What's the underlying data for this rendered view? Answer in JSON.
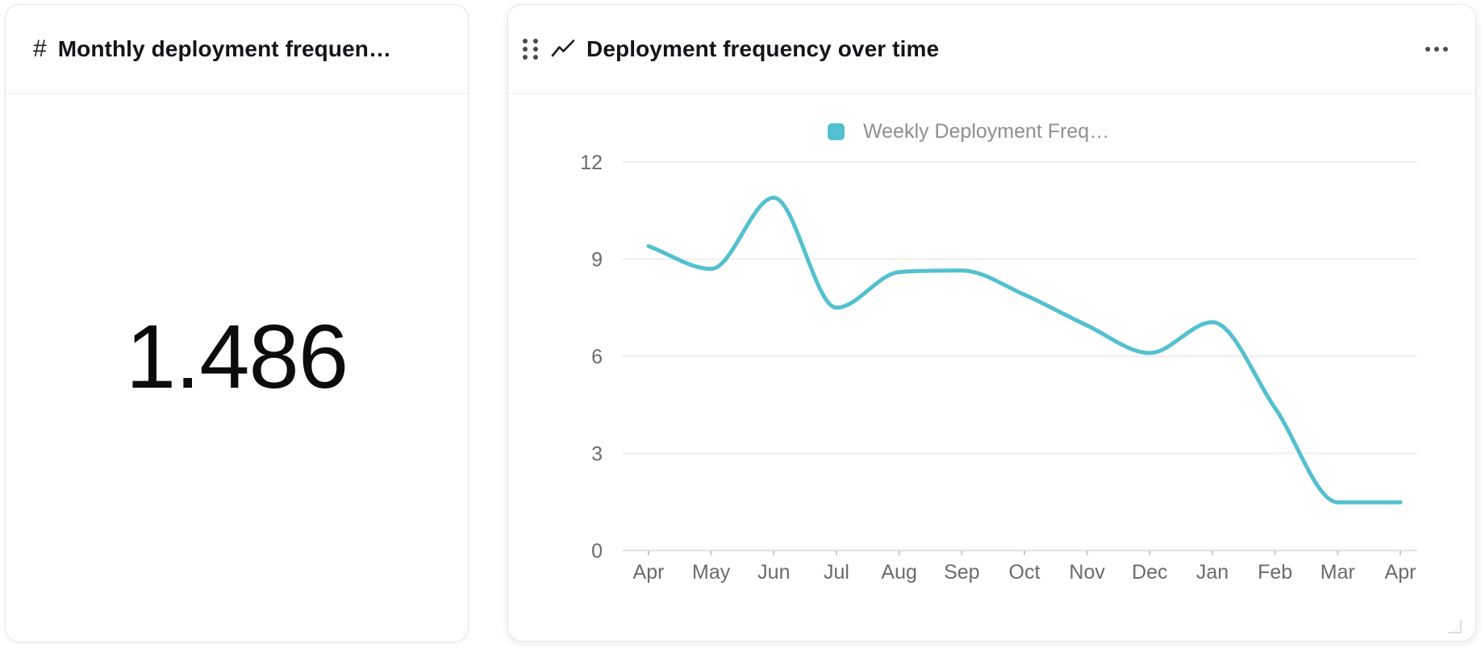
{
  "left_card": {
    "icon": "#",
    "title": "Monthly deployment frequen…",
    "value": "1.486"
  },
  "right_card": {
    "title": "Deployment frequency over time"
  },
  "icons": {
    "number_sign": "#",
    "drag_handle": "six-dot-grid",
    "line_chart": "zigzag-trend-line",
    "more_menu": "three-dots-horizontal",
    "resize_handle": "corner-curve"
  },
  "colors": {
    "line": "#54c0cf",
    "grid": "#efefef",
    "axis": "#e2e2e2",
    "tick": "#c9c9c9",
    "axis_label": "#6b6b6b",
    "legend_text": "#8f8f8f",
    "title_text": "#141419"
  },
  "chart_data": {
    "type": "line",
    "title": "Deployment frequency over time",
    "legend_position": "top",
    "grid": "horizontal",
    "smoothing": "monotone",
    "categories": [
      "Apr",
      "May",
      "Jun",
      "Jul",
      "Aug",
      "Sep",
      "Oct",
      "Nov",
      "Dec",
      "Jan",
      "Feb",
      "Mar",
      "Apr"
    ],
    "series": [
      {
        "name": "Weekly Deployment Freq…",
        "color": "#54c0cf",
        "values": [
          9.4,
          8.7,
          10.9,
          7.5,
          8.6,
          8.65,
          7.9,
          6.95,
          6.1,
          7.05,
          4.4,
          1.49,
          1.49
        ]
      }
    ],
    "xlabel": "",
    "ylabel": "",
    "ylim": [
      0,
      12
    ],
    "yticks": [
      0,
      3,
      6,
      9,
      12
    ]
  }
}
